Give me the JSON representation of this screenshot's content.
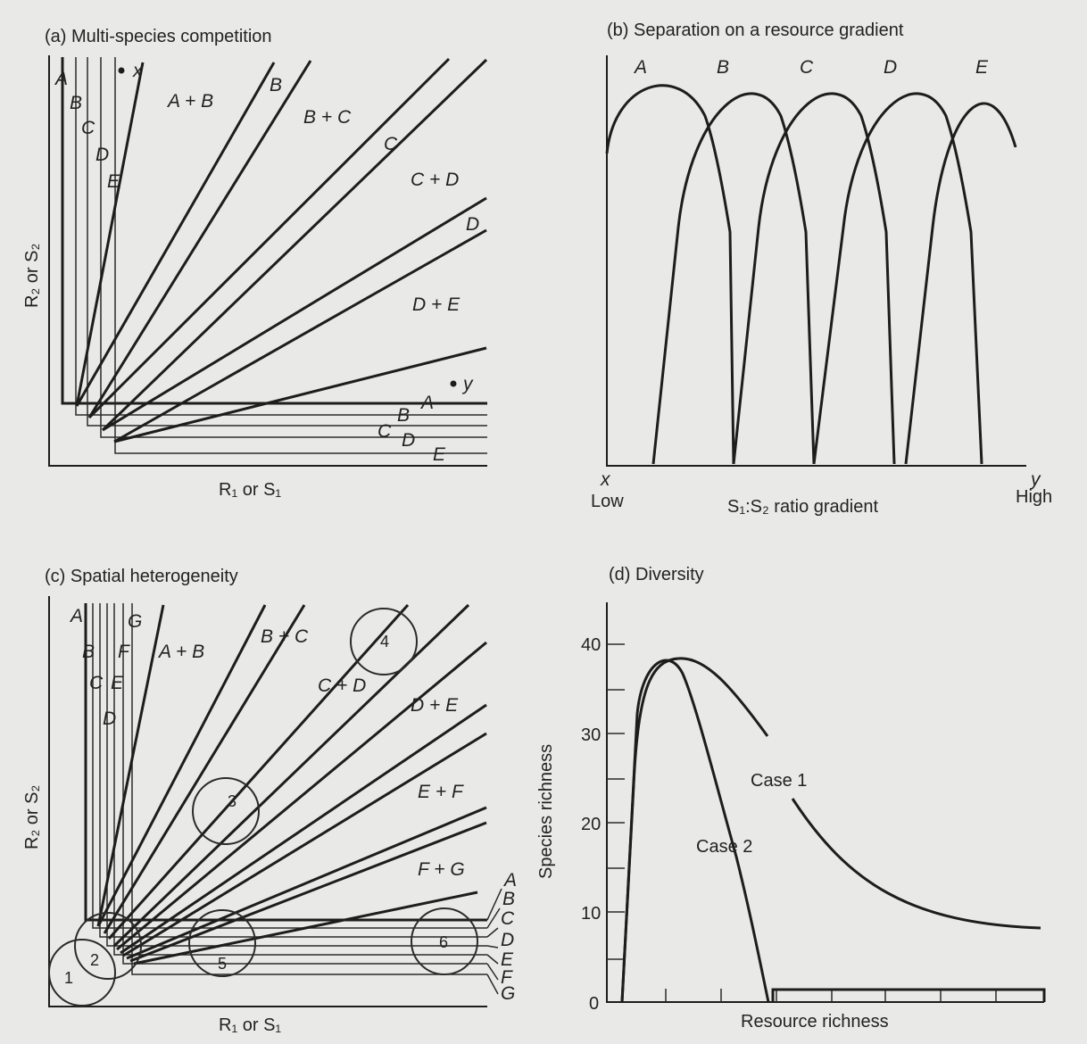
{
  "panels": {
    "a": {
      "title": "(a) Multi-species competition",
      "xlabel": "R₁ or S₁",
      "ylabel": "R₂ or S₂",
      "species_top": [
        "A",
        "B",
        "C",
        "D",
        "E"
      ],
      "regions": [
        "A + B",
        "B",
        "B + C",
        "C",
        "C + D",
        "D",
        "D + E"
      ],
      "species_right": [
        "A",
        "B",
        "C",
        "D",
        "E"
      ],
      "points": [
        "x",
        "y"
      ]
    },
    "b": {
      "title": "(b) Separation on a resource gradient",
      "species": [
        "A",
        "B",
        "C",
        "D",
        "E"
      ],
      "x_left_point": "x",
      "x_left_label": "Low",
      "x_right_point": "y",
      "x_right_label": "High",
      "xlabel": "S₁:S₂ ratio gradient"
    },
    "c": {
      "title": "(c) Spatial heterogeneity",
      "xlabel": "R₁ or S₁",
      "ylabel": "R₂ or S₂",
      "species_top": [
        "A",
        "B",
        "C",
        "D",
        "E",
        "F",
        "G"
      ],
      "regions": [
        "A + B",
        "B + C",
        "C + D",
        "D + E",
        "E + F",
        "F + G"
      ],
      "species_right": [
        "A",
        "B",
        "C",
        "D",
        "E",
        "F",
        "G"
      ],
      "patches": [
        "1",
        "2",
        "3",
        "4",
        "5",
        "6"
      ]
    },
    "d": {
      "title": "(d) Diversity",
      "ylabel": "Species richness",
      "xlabel": "Resource richness",
      "yticks": [
        "0",
        "10",
        "20",
        "30",
        "40"
      ],
      "case1_label": "Case 1",
      "case2_label": "Case 2"
    }
  },
  "colors": {
    "ink": "#1d1d1d",
    "paper": "#e9e9e7"
  }
}
